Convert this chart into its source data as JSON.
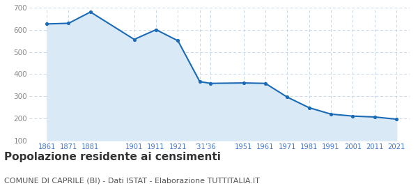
{
  "years": [
    1861,
    1871,
    1881,
    1901,
    1911,
    1921,
    1931,
    1936,
    1951,
    1961,
    1971,
    1981,
    1991,
    2001,
    2011,
    2021
  ],
  "population": [
    627,
    630,
    681,
    557,
    601,
    551,
    366,
    358,
    360,
    358,
    296,
    248,
    219,
    210,
    206,
    196
  ],
  "line_color": "#1a6ab5",
  "fill_color": "#d9eaf6",
  "marker_color": "#1a6ab5",
  "grid_color": "#c8d8e8",
  "background_color": "#ffffff",
  "title": "Popolazione residente ai censimenti",
  "subtitle": "COMUNE DI CAPRILE (BI) - Dati ISTAT - Elaborazione TUTTITALIA.IT",
  "title_fontsize": 11,
  "subtitle_fontsize": 8,
  "tick_label_color": "#4477cc",
  "ytick_label_color": "#888888",
  "ylim": [
    100,
    700
  ],
  "yticks": [
    100,
    200,
    300,
    400,
    500,
    600,
    700
  ],
  "xtick_positions": [
    1861,
    1871,
    1881,
    1901,
    1911,
    1921,
    1931,
    1936,
    1951,
    1961,
    1971,
    1981,
    1991,
    2001,
    2011,
    2021
  ],
  "xtick_labels": [
    "1861",
    "1871",
    "1881",
    "1901",
    "1911",
    "1921",
    "’31",
    "’36",
    "1951",
    "1961",
    "1971",
    "1981",
    "1991",
    "2001",
    "2011",
    "2021"
  ],
  "xlim_left": 1853,
  "xlim_right": 2027
}
